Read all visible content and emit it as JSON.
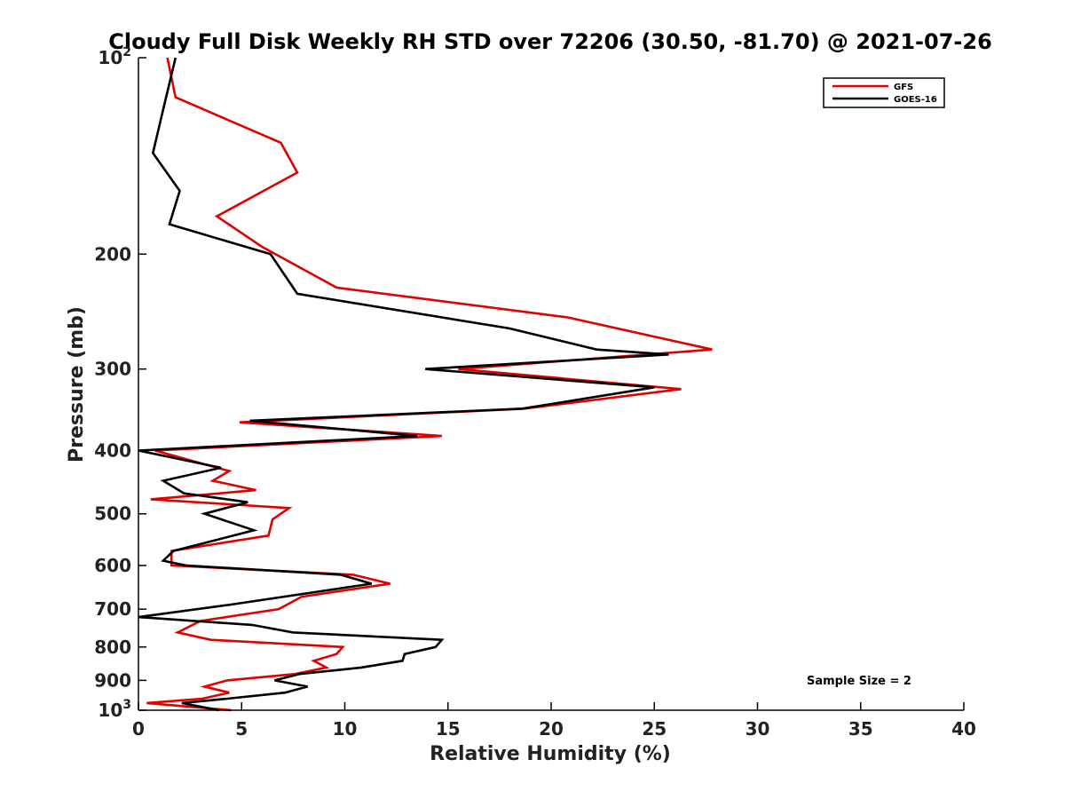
{
  "chart_data": {
    "type": "line",
    "title": "Cloudy Full Disk Weekly RH STD over 72206 (30.50, -81.70) @ 2021-07-26",
    "xlabel": "Relative Humidity (%)",
    "ylabel": "Pressure (mb)",
    "xlim": [
      0,
      40
    ],
    "ylim": [
      100,
      1000
    ],
    "yscale": "log",
    "y_reversed": true,
    "xticks": [
      0,
      5,
      10,
      15,
      20,
      25,
      30,
      35,
      40
    ],
    "xtick_labels": [
      "0",
      "5",
      "10",
      "15",
      "20",
      "25",
      "30",
      "35",
      "40"
    ],
    "yticks": [
      {
        "value": 100,
        "base": "10",
        "exp": "2"
      },
      {
        "value": 200,
        "label": "200"
      },
      {
        "value": 300,
        "label": "300"
      },
      {
        "value": 400,
        "label": "400"
      },
      {
        "value": 500,
        "label": "500"
      },
      {
        "value": 600,
        "label": "600"
      },
      {
        "value": 700,
        "label": "700"
      },
      {
        "value": 800,
        "label": "800"
      },
      {
        "value": 900,
        "label": "900"
      },
      {
        "value": 1000,
        "base": "10",
        "exp": "3"
      }
    ],
    "legend_position": "top-right",
    "annotation": "Sample Size = 2",
    "series": [
      {
        "name": "GFS",
        "color": "#e00000",
        "points": [
          [
            1.4,
            100
          ],
          [
            1.8,
            115
          ],
          [
            6.9,
            135
          ],
          [
            7.7,
            150
          ],
          [
            3.8,
            175
          ],
          [
            6.0,
            195
          ],
          [
            9.6,
            225
          ],
          [
            20.8,
            250
          ],
          [
            27.8,
            280
          ],
          [
            15.5,
            300
          ],
          [
            26.3,
            322
          ],
          [
            18.7,
            345
          ],
          [
            4.9,
            362
          ],
          [
            14.7,
            380
          ],
          [
            0.8,
            400
          ],
          [
            4.4,
            430
          ],
          [
            3.6,
            445
          ],
          [
            5.7,
            460
          ],
          [
            0.6,
            475
          ],
          [
            7.3,
            490
          ],
          [
            6.5,
            510
          ],
          [
            6.3,
            540
          ],
          [
            1.6,
            570
          ],
          [
            1.6,
            600
          ],
          [
            10.4,
            620
          ],
          [
            12.2,
            640
          ],
          [
            7.9,
            670
          ],
          [
            6.8,
            700
          ],
          [
            3.0,
            730
          ],
          [
            1.9,
            760
          ],
          [
            3.5,
            780
          ],
          [
            9.9,
            800
          ],
          [
            9.6,
            820
          ],
          [
            8.5,
            840
          ],
          [
            9.1,
            860
          ],
          [
            7.6,
            880
          ],
          [
            4.3,
            900
          ],
          [
            3.2,
            920
          ],
          [
            4.4,
            940
          ],
          [
            3.1,
            960
          ],
          [
            0.4,
            975
          ],
          [
            4.5,
            1000
          ]
        ]
      },
      {
        "name": "GOES-16",
        "color": "#000000",
        "points": [
          [
            1.8,
            100
          ],
          [
            1.2,
            120
          ],
          [
            0.7,
            140
          ],
          [
            2.0,
            160
          ],
          [
            1.5,
            180
          ],
          [
            6.4,
            200
          ],
          [
            7.7,
            230
          ],
          [
            18.0,
            260
          ],
          [
            22.2,
            280
          ],
          [
            25.7,
            285
          ],
          [
            13.9,
            300
          ],
          [
            25.0,
            320
          ],
          [
            18.6,
            345
          ],
          [
            5.4,
            360
          ],
          [
            13.5,
            380
          ],
          [
            0.0,
            400
          ],
          [
            4.0,
            425
          ],
          [
            1.2,
            445
          ],
          [
            2.2,
            465
          ],
          [
            5.3,
            480
          ],
          [
            3.2,
            500
          ],
          [
            5.6,
            530
          ],
          [
            1.7,
            570
          ],
          [
            1.2,
            590
          ],
          [
            2.3,
            600
          ],
          [
            9.8,
            620
          ],
          [
            11.3,
            640
          ],
          [
            4.3,
            690
          ],
          [
            0.0,
            720
          ],
          [
            5.5,
            740
          ],
          [
            7.5,
            760
          ],
          [
            14.7,
            780
          ],
          [
            14.4,
            800
          ],
          [
            12.9,
            820
          ],
          [
            12.8,
            840
          ],
          [
            10.8,
            860
          ],
          [
            7.8,
            880
          ],
          [
            6.6,
            900
          ],
          [
            8.2,
            920
          ],
          [
            7.1,
            940
          ],
          [
            4.3,
            960
          ],
          [
            2.1,
            975
          ],
          [
            3.9,
            1000
          ]
        ]
      }
    ]
  }
}
